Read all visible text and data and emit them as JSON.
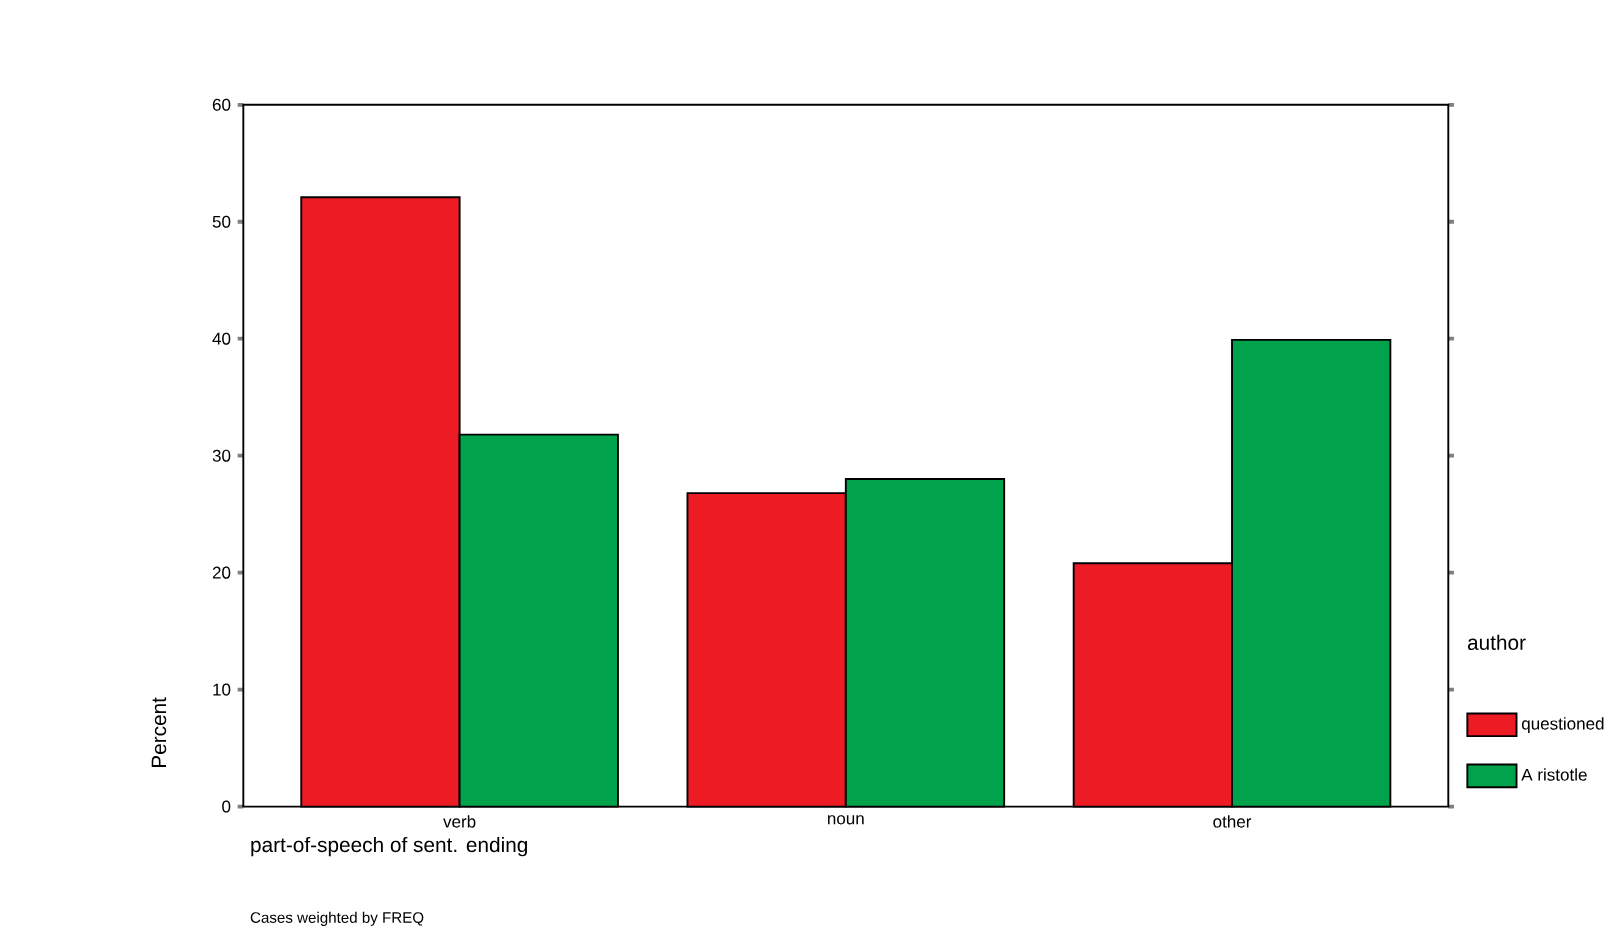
{
  "chart_data": {
    "type": "bar",
    "xlabel": "part-of-speech of sent. ending",
    "ylabel": "Percent",
    "legend_title": "author",
    "categories": [
      "verb",
      "noun",
      "other"
    ],
    "series": [
      {
        "name": "questioned",
        "color": "#ed1c24",
        "values": [
          52.1,
          26.8,
          20.8
        ]
      },
      {
        "name": "A ristotle",
        "color": "#00a34b",
        "values": [
          31.8,
          28.0,
          39.9
        ]
      }
    ],
    "ylim": [
      0,
      60
    ],
    "yticks": [
      0,
      10,
      20,
      30,
      40,
      50,
      60
    ],
    "grid": false,
    "legend": "right",
    "annotations": [
      "Cases weighted by FREQ"
    ]
  }
}
